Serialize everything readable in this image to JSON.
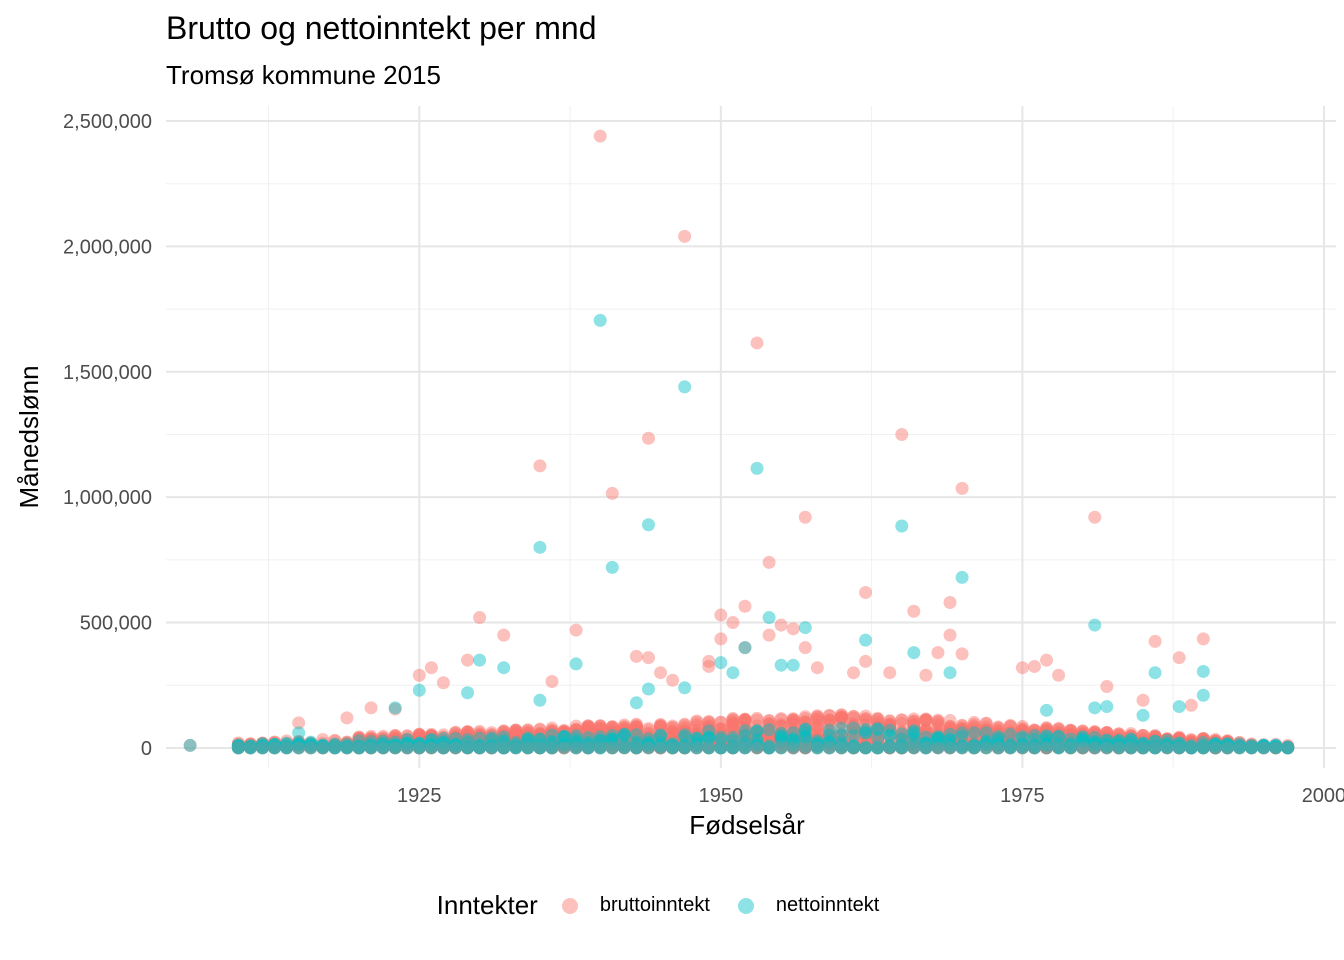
{
  "chart_data": {
    "type": "scatter",
    "title": "Brutto og nettoinntekt per mnd",
    "subtitle": "Tromsø kommune 2015",
    "xlabel": "Fødselsår",
    "ylabel": "Månedslønn",
    "xlim": [
      1904,
      2001
    ],
    "ylim": [
      -80000,
      2560000
    ],
    "xticks": [
      1925,
      1950,
      1975,
      2000
    ],
    "xtick_labels": [
      "1925",
      "1950",
      "1975",
      "2000"
    ],
    "yticks": [
      0,
      500000,
      1000000,
      1500000,
      2000000,
      2500000
    ],
    "ytick_labels": [
      "0",
      "500,000",
      "1,000,000",
      "1,500,000",
      "2,000,000",
      "2,500,000"
    ],
    "grid": true,
    "legend_position": "bottom",
    "legend_title": "Inntekter",
    "series": [
      {
        "name": "bruttoinntekt",
        "color": "#F8766D",
        "points": [
          [
            1940,
            2440000
          ],
          [
            1947,
            2040000
          ],
          [
            1953,
            1615000
          ],
          [
            1965,
            1250000
          ],
          [
            1944,
            1235000
          ],
          [
            1935,
            1125000
          ],
          [
            1970,
            1035000
          ],
          [
            1941,
            1015000
          ],
          [
            1957,
            920000
          ],
          [
            1981,
            920000
          ],
          [
            1954,
            740000
          ],
          [
            1962,
            620000
          ],
          [
            1969,
            580000
          ],
          [
            1952,
            565000
          ],
          [
            1966,
            545000
          ],
          [
            1950,
            530000
          ],
          [
            1930,
            520000
          ],
          [
            1951,
            500000
          ],
          [
            1955,
            490000
          ],
          [
            1938,
            470000
          ],
          [
            1956,
            475000
          ],
          [
            1932,
            450000
          ],
          [
            1954,
            450000
          ],
          [
            1969,
            450000
          ],
          [
            1990,
            435000
          ],
          [
            1950,
            435000
          ],
          [
            1986,
            425000
          ],
          [
            1957,
            400000
          ],
          [
            1952,
            400000
          ],
          [
            1968,
            380000
          ],
          [
            1970,
            375000
          ],
          [
            1943,
            365000
          ],
          [
            1944,
            360000
          ],
          [
            1988,
            360000
          ],
          [
            1929,
            350000
          ],
          [
            1949,
            345000
          ],
          [
            1962,
            345000
          ],
          [
            1977,
            350000
          ],
          [
            1926,
            320000
          ],
          [
            1925,
            290000
          ],
          [
            1976,
            325000
          ],
          [
            1975,
            320000
          ],
          [
            1958,
            320000
          ],
          [
            1949,
            325000
          ],
          [
            1936,
            265000
          ],
          [
            1927,
            260000
          ],
          [
            1945,
            300000
          ],
          [
            1946,
            270000
          ],
          [
            1961,
            300000
          ],
          [
            1964,
            300000
          ],
          [
            1967,
            290000
          ],
          [
            1978,
            290000
          ],
          [
            1982,
            245000
          ],
          [
            1985,
            190000
          ],
          [
            1989,
            170000
          ],
          [
            1921,
            160000
          ],
          [
            1923,
            155000
          ],
          [
            1919,
            120000
          ],
          [
            1915,
            100000
          ]
        ]
      },
      {
        "name": "nettoinntekt",
        "color": "#00BFC4",
        "points": [
          [
            1940,
            1705000
          ],
          [
            1947,
            1440000
          ],
          [
            1953,
            1115000
          ],
          [
            1944,
            890000
          ],
          [
            1965,
            885000
          ],
          [
            1935,
            800000
          ],
          [
            1941,
            720000
          ],
          [
            1970,
            680000
          ],
          [
            1954,
            520000
          ],
          [
            1981,
            490000
          ],
          [
            1957,
            480000
          ],
          [
            1962,
            430000
          ],
          [
            1952,
            400000
          ],
          [
            1966,
            380000
          ],
          [
            1930,
            350000
          ],
          [
            1950,
            340000
          ],
          [
            1938,
            335000
          ],
          [
            1932,
            320000
          ],
          [
            1955,
            330000
          ],
          [
            1956,
            330000
          ],
          [
            1990,
            305000
          ],
          [
            1986,
            300000
          ],
          [
            1969,
            300000
          ],
          [
            1951,
            300000
          ],
          [
            1925,
            230000
          ],
          [
            1929,
            220000
          ],
          [
            1990,
            210000
          ],
          [
            1944,
            235000
          ],
          [
            1947,
            240000
          ],
          [
            1935,
            190000
          ],
          [
            1943,
            180000
          ],
          [
            1988,
            165000
          ],
          [
            1982,
            165000
          ],
          [
            1981,
            160000
          ],
          [
            1923,
            160000
          ],
          [
            1977,
            150000
          ],
          [
            1985,
            130000
          ],
          [
            1915,
            60000
          ]
        ]
      }
    ]
  }
}
